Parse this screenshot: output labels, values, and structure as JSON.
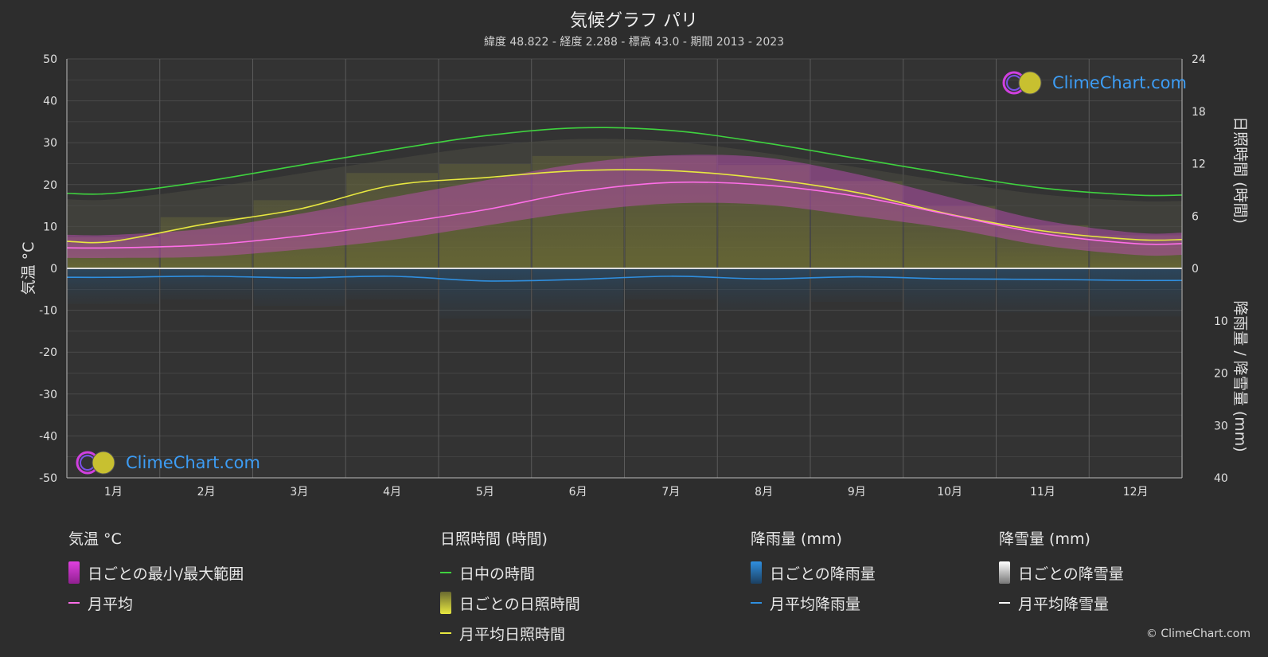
{
  "header": {
    "title": "気候グラフ パリ",
    "subtitle": "緯度 48.822 - 経度 2.288 - 標高 43.0 - 期間 2013 - 2023"
  },
  "chart_data": {
    "type": "line",
    "categories": [
      "1月",
      "2月",
      "3月",
      "4月",
      "5月",
      "6月",
      "7月",
      "8月",
      "9月",
      "10月",
      "11月",
      "12月"
    ],
    "left_axis": {
      "label": "気温 °C",
      "range": [
        -50,
        50
      ],
      "ticks": [
        50,
        40,
        30,
        20,
        10,
        0,
        -10,
        -20,
        -30,
        -40,
        -50
      ]
    },
    "right_axis_top": {
      "label": "日照時間 (時間)",
      "range": [
        0,
        24
      ],
      "ticks": [
        24,
        18,
        12,
        6,
        0
      ]
    },
    "right_axis_bottom": {
      "label": "降雨量 / 降雪量 (mm)",
      "range": [
        0,
        40
      ],
      "ticks": [
        10,
        20,
        30,
        40
      ]
    },
    "series": [
      {
        "name": "日中の時間",
        "unit": "hours",
        "color": "#3fd23f",
        "values": [
          8.6,
          10.0,
          11.8,
          13.6,
          15.2,
          16.1,
          15.8,
          14.4,
          12.6,
          10.8,
          9.2,
          8.4
        ]
      },
      {
        "name": "月平均日照時間",
        "unit": "hours",
        "color": "#e8e840",
        "values": [
          3.1,
          5.1,
          6.8,
          9.5,
          10.4,
          11.2,
          11.2,
          10.3,
          8.7,
          6.2,
          4.3,
          3.3
        ]
      },
      {
        "name": "月平均",
        "unit": "°C",
        "color": "#ff6ee8",
        "values": [
          4.9,
          5.6,
          7.7,
          10.6,
          14.0,
          18.3,
          20.5,
          19.9,
          17.2,
          12.8,
          8.3,
          5.9
        ]
      },
      {
        "name": "月平均降雨量",
        "unit": "mm",
        "color": "#2f8fe0",
        "values": [
          1.7,
          1.5,
          1.8,
          1.5,
          2.4,
          2.1,
          1.5,
          2.0,
          1.6,
          2.0,
          2.1,
          2.3
        ]
      },
      {
        "name": "月平均降雪量",
        "unit": "mm",
        "color": "#ffffff",
        "values": [
          0,
          0,
          0,
          0,
          0,
          0,
          0,
          0,
          0,
          0,
          0,
          0
        ]
      }
    ],
    "temp_range": {
      "min": [
        2.5,
        2.8,
        4.5,
        6.8,
        10.2,
        13.5,
        15.5,
        15.2,
        12.5,
        9.5,
        5.5,
        3.2
      ],
      "max": [
        8.0,
        9.5,
        13.0,
        17.0,
        21.0,
        25.0,
        27.0,
        26.5,
        22.5,
        17.0,
        11.5,
        8.5
      ]
    },
    "grid": true
  },
  "legend": {
    "temperature": {
      "head": "気温 °C",
      "items": [
        "日ごとの最小/最大範囲",
        "月平均"
      ]
    },
    "sunshine": {
      "head": "日照時間 (時間)",
      "items": [
        "日中の時間",
        "日ごとの日照時間",
        "月平均日照時間"
      ]
    },
    "rain": {
      "head": "降雨量 (mm)",
      "items": [
        "日ごとの降雨量",
        "月平均降雨量"
      ]
    },
    "snow": {
      "head": "降雪量 (mm)",
      "items": [
        "日ごとの降雪量",
        "月平均降雪量"
      ]
    }
  },
  "logo": {
    "text": "ClimeChart.com"
  },
  "copyright": "© ClimeChart.com"
}
